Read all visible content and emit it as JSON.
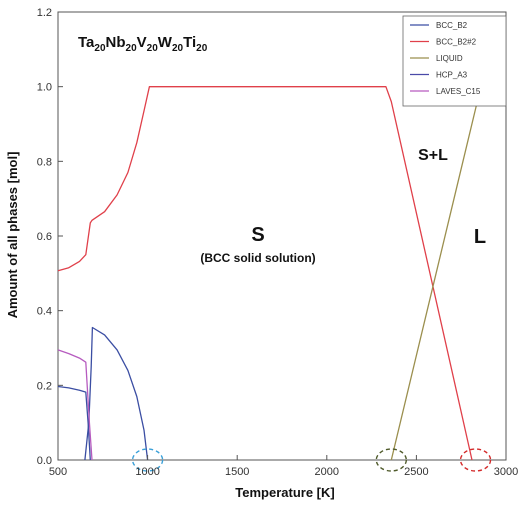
{
  "chart_data": {
    "type": "line",
    "title": "Ta20Nb20V20W20Ti20",
    "title_parts": {
      "a": "Ta",
      "a_sub": "20",
      "b": "Nb",
      "b_sub": "20",
      "c": "V",
      "c_sub": "20",
      "d": "W",
      "d_sub": "20",
      "e": "Ti",
      "e_sub": "20"
    },
    "xlabel": "Temperature [K]",
    "ylabel": "Amount of all phases [mol]",
    "xlim": [
      500,
      3000
    ],
    "ylim": [
      0,
      1.2
    ],
    "xticks": [
      "500",
      "1000",
      "1500",
      "2000",
      "2500",
      "3000"
    ],
    "yticks": [
      "0.0",
      "0.2",
      "0.4",
      "0.6",
      "0.8",
      "1.0",
      "1.2"
    ],
    "grid": false,
    "legend_position": "top-right",
    "series": [
      {
        "name": "BCC_B2",
        "color": "#3b4ea3",
        "points": [
          [
            500,
            0.197
          ],
          [
            560,
            0.193
          ],
          [
            620,
            0.187
          ],
          [
            655,
            0.182
          ],
          [
            668,
            0.1
          ],
          [
            680,
            0.0
          ]
        ]
      },
      {
        "name": "BCC_B2",
        "color": "#3b4ea3",
        "points": [
          [
            650,
            0.0
          ],
          [
            672,
            0.1
          ],
          [
            685,
            0.25
          ],
          [
            692,
            0.355
          ],
          [
            760,
            0.335
          ],
          [
            830,
            0.295
          ],
          [
            890,
            0.24
          ],
          [
            940,
            0.17
          ],
          [
            980,
            0.08
          ],
          [
            1000,
            0.0
          ]
        ]
      },
      {
        "name": "BCC_B2#2",
        "color": "#e0404a",
        "points": [
          [
            500,
            0.507
          ],
          [
            560,
            0.515
          ],
          [
            620,
            0.532
          ],
          [
            655,
            0.55
          ],
          [
            680,
            0.635
          ],
          [
            690,
            0.642
          ],
          [
            760,
            0.665
          ],
          [
            830,
            0.71
          ],
          [
            890,
            0.77
          ],
          [
            940,
            0.85
          ],
          [
            980,
            0.935
          ],
          [
            1010,
            1.0
          ],
          [
            2330,
            1.0
          ],
          [
            2360,
            0.96
          ],
          [
            2810,
            0.0
          ]
        ]
      },
      {
        "name": "LIQUID",
        "color": "#9b8f4e",
        "points": [
          [
            2360,
            0.0
          ],
          [
            2480,
            0.24
          ],
          [
            2600,
            0.48
          ],
          [
            2720,
            0.72
          ],
          [
            2840,
            0.96
          ],
          [
            2860,
            1.0
          ]
        ]
      },
      {
        "name": "LAVES_C15",
        "color": "#b65bbf",
        "points": [
          [
            500,
            0.295
          ],
          [
            560,
            0.285
          ],
          [
            620,
            0.273
          ],
          [
            655,
            0.262
          ],
          [
            675,
            0.1
          ],
          [
            690,
            0.0
          ]
        ]
      }
    ],
    "legend": [
      {
        "name": "BCC_B2",
        "color": "#3b4ea3"
      },
      {
        "name": "BCC_B2#2",
        "color": "#e0404a"
      },
      {
        "name": "LIQUID",
        "color": "#9b8f4e"
      },
      {
        "name": "HCP_A3",
        "color": "#4a4aa8"
      },
      {
        "name": "LAVES_C15",
        "color": "#b65bbf"
      }
    ],
    "annotations": {
      "solid": "S",
      "solid_note": "(BCC solid solution)",
      "two_phase": "S+L",
      "liquid": "L"
    },
    "markers": [
      {
        "x": 1000,
        "color": "#3aa0d8"
      },
      {
        "x": 2360,
        "color": "#4f5a2a"
      },
      {
        "x": 2830,
        "color": "#d42a2a"
      }
    ]
  }
}
